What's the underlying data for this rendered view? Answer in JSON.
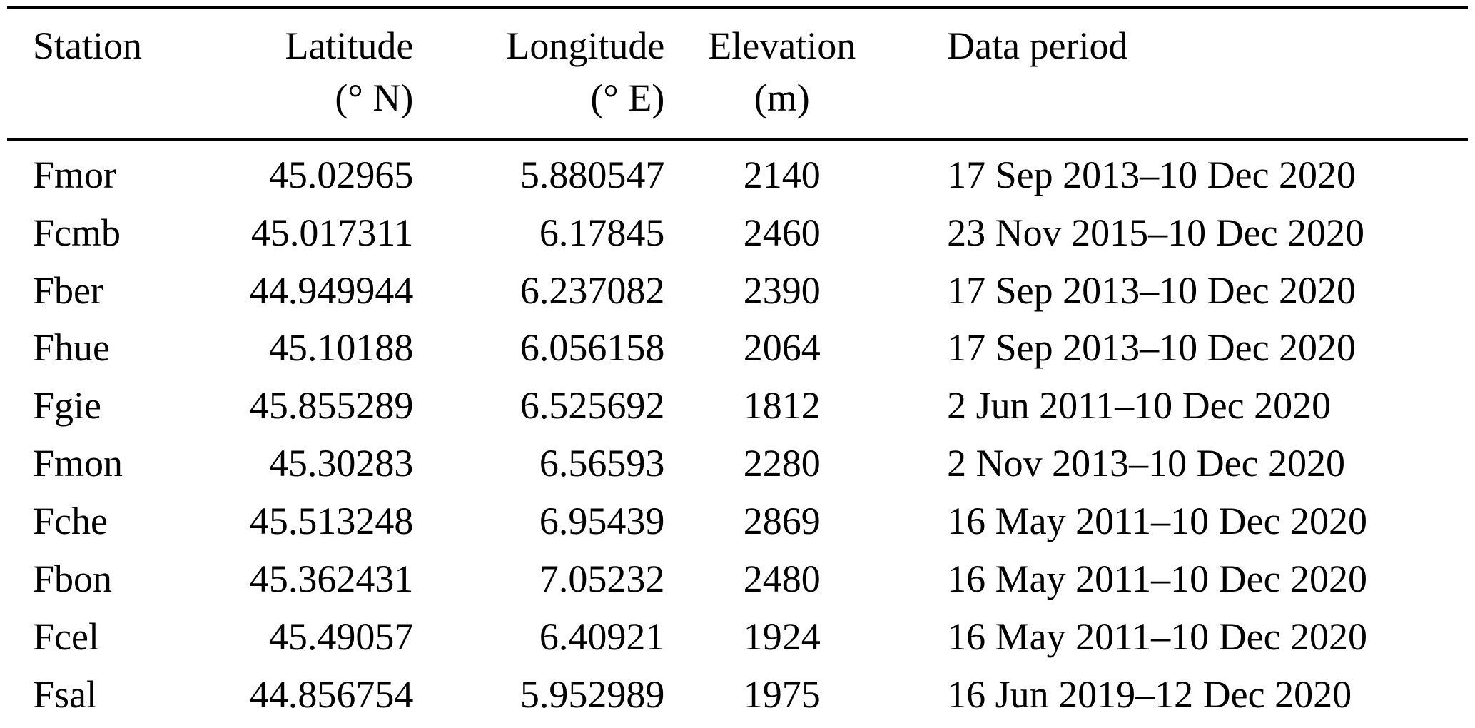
{
  "page": {
    "background": "#ffffff",
    "text_color": "#000000",
    "rule_color": "#000000"
  },
  "table": {
    "columns": [
      {
        "id": "station",
        "label": "Station",
        "sub": "",
        "align": "left"
      },
      {
        "id": "latitude",
        "label": "Latitude",
        "sub": "(° N)",
        "align": "right"
      },
      {
        "id": "longitude",
        "label": "Longitude",
        "sub": "(° E)",
        "align": "right"
      },
      {
        "id": "elevation",
        "label": "Elevation",
        "sub": "(m)",
        "align": "center"
      },
      {
        "id": "period",
        "label": "Data period",
        "sub": "",
        "align": "left"
      }
    ],
    "rows": [
      [
        "Fmor",
        "45.02965",
        "5.880547",
        "2140",
        "17 Sep 2013–10 Dec 2020"
      ],
      [
        "Fcmb",
        "45.017311",
        "6.17845",
        "2460",
        "23 Nov 2015–10 Dec 2020"
      ],
      [
        "Fber",
        "44.949944",
        "6.237082",
        "2390",
        "17 Sep 2013–10 Dec 2020"
      ],
      [
        "Fhue",
        "45.10188",
        "6.056158",
        "2064",
        "17 Sep 2013–10 Dec 2020"
      ],
      [
        "Fgie",
        "45.855289",
        "6.525692",
        "1812",
        "2 Jun 2011–10 Dec 2020"
      ],
      [
        "Fmon",
        "45.30283",
        "6.56593",
        "2280",
        "2 Nov 2013–10 Dec 2020"
      ],
      [
        "Fche",
        "45.513248",
        "6.95439",
        "2869",
        "16 May 2011–10 Dec 2020"
      ],
      [
        "Fbon",
        "45.362431",
        "7.05232",
        "2480",
        "16 May 2011–10 Dec 2020"
      ],
      [
        "Fcel",
        "45.49057",
        "6.40921",
        "1924",
        "16 May 2011–10 Dec 2020"
      ],
      [
        "Fsal",
        "44.856754",
        "5.952989",
        "1975",
        "16 Jun 2019–12 Dec 2020"
      ]
    ]
  }
}
